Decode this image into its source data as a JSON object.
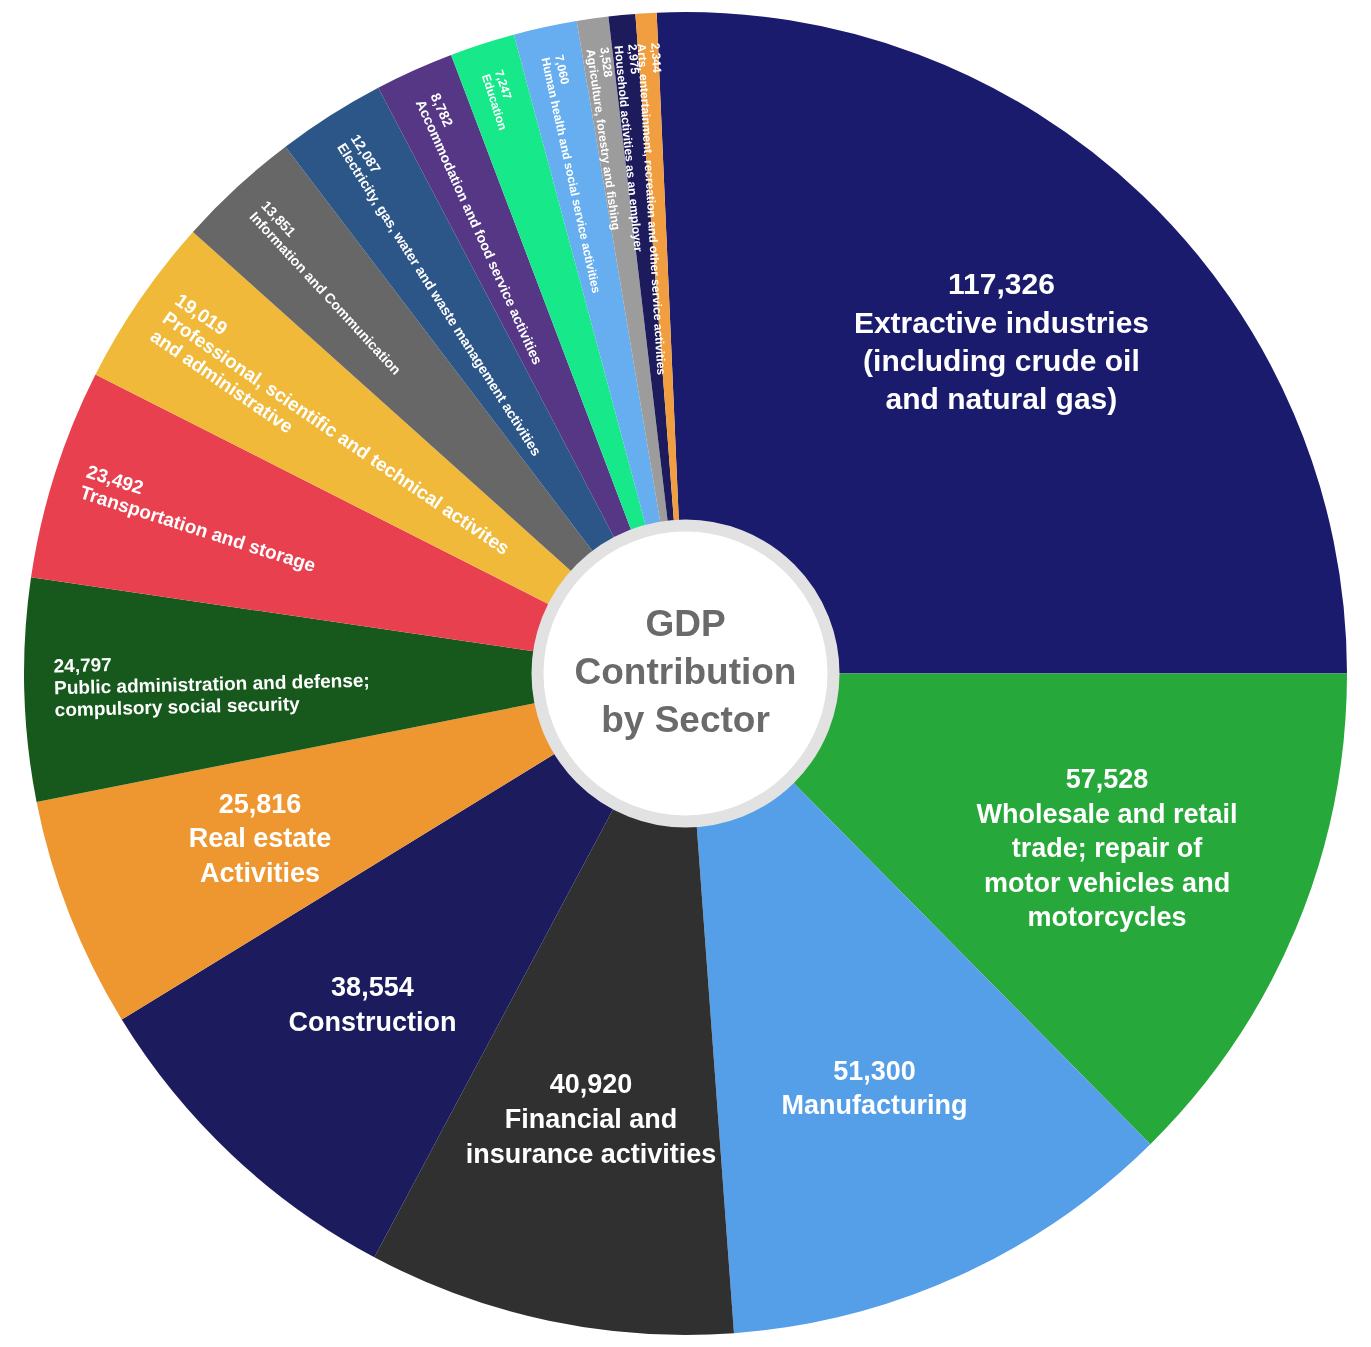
{
  "chart_data": {
    "type": "donut",
    "title": "GDP Contribution by Sector",
    "categories": [
      "Extractive industries (including crude oil and natural gas)",
      "Wholesale and retail trade; repair of motor vehicles and motorcycles",
      "Manufacturing",
      "Financial and insurance activities",
      "Construction",
      "Real estate Activities",
      "Public administration and defense; compulsory social security",
      "Transportation and storage",
      "Professional, scientific and technical activites and administrative",
      "Information and Communication",
      "Electricity, gas, water and waste management activities",
      "Accommodation and food service activities",
      "Education",
      "Human health and social service activities",
      "Agriculture, forestry and fishing",
      "Household activities as an employer",
      "Arts, entertainment, recreation and other service activities"
    ],
    "values": [
      117326,
      57528,
      51300,
      40920,
      38554,
      25816,
      24797,
      23492,
      19019,
      13851,
      12087,
      8782,
      7247,
      7060,
      3528,
      2975,
      2344
    ],
    "colors": [
      "#1b1b6e",
      "#27a83a",
      "#559fe8",
      "#303030",
      "#1b1b5e",
      "#ee962f",
      "#17591d",
      "#e8404f",
      "#f0b93a",
      "#676767",
      "#2c5687",
      "#553785",
      "#17e88a",
      "#67aef0",
      "#9c9c9c",
      "#1d1b5c",
      "#f09e3f"
    ],
    "value_labels": [
      "117,326",
      "57,528",
      "51,300",
      "40,920",
      "38,554",
      "25,816",
      "24,797",
      "23,492",
      "19,019",
      "13,851",
      "12,087",
      "8,782",
      "7,247",
      "7,060",
      "3,528",
      "2,975",
      "2,344"
    ]
  }
}
